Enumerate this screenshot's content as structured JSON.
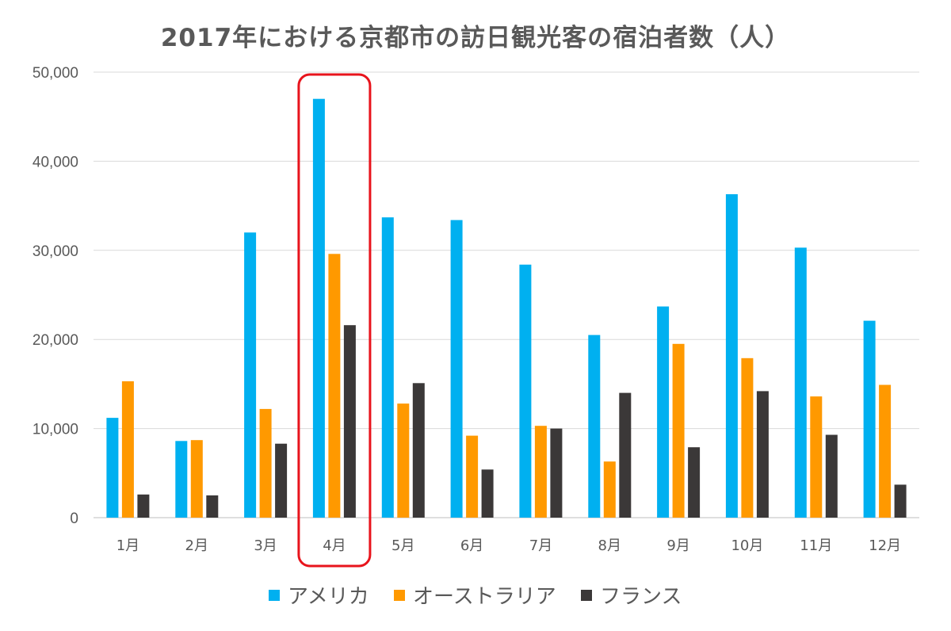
{
  "chart_data": {
    "type": "bar",
    "title": "2017年における京都市の訪日観光客の宿泊者数（人）",
    "xlabel": "",
    "ylabel": "",
    "ylim": [
      0,
      50000
    ],
    "yticks": [
      "0",
      "10,000",
      "20,000",
      "30,000",
      "40,000",
      "50,000"
    ],
    "ytick_values": [
      0,
      10000,
      20000,
      30000,
      40000,
      50000
    ],
    "grid": true,
    "legend_position": "bottom",
    "categories": [
      "1月",
      "2月",
      "3月",
      "4月",
      "5月",
      "6月",
      "7月",
      "8月",
      "9月",
      "10月",
      "11月",
      "12月"
    ],
    "series": [
      {
        "name": "アメリカ",
        "color": "#00B0F0",
        "values": [
          11200,
          8600,
          32000,
          47000,
          33700,
          33400,
          28400,
          20500,
          23700,
          36300,
          30300,
          22100
        ]
      },
      {
        "name": "オーストラリア",
        "color": "#FF9900",
        "values": [
          15300,
          8700,
          12200,
          29600,
          12800,
          9200,
          10300,
          6300,
          19500,
          17900,
          13600,
          14900
        ]
      },
      {
        "name": "フランス",
        "color": "#3B3838",
        "values": [
          2600,
          2500,
          8300,
          21600,
          15100,
          5400,
          10000,
          14000,
          7900,
          14200,
          9300,
          3700
        ]
      }
    ],
    "highlight": {
      "category": "4月",
      "color": "#E8141C"
    }
  }
}
